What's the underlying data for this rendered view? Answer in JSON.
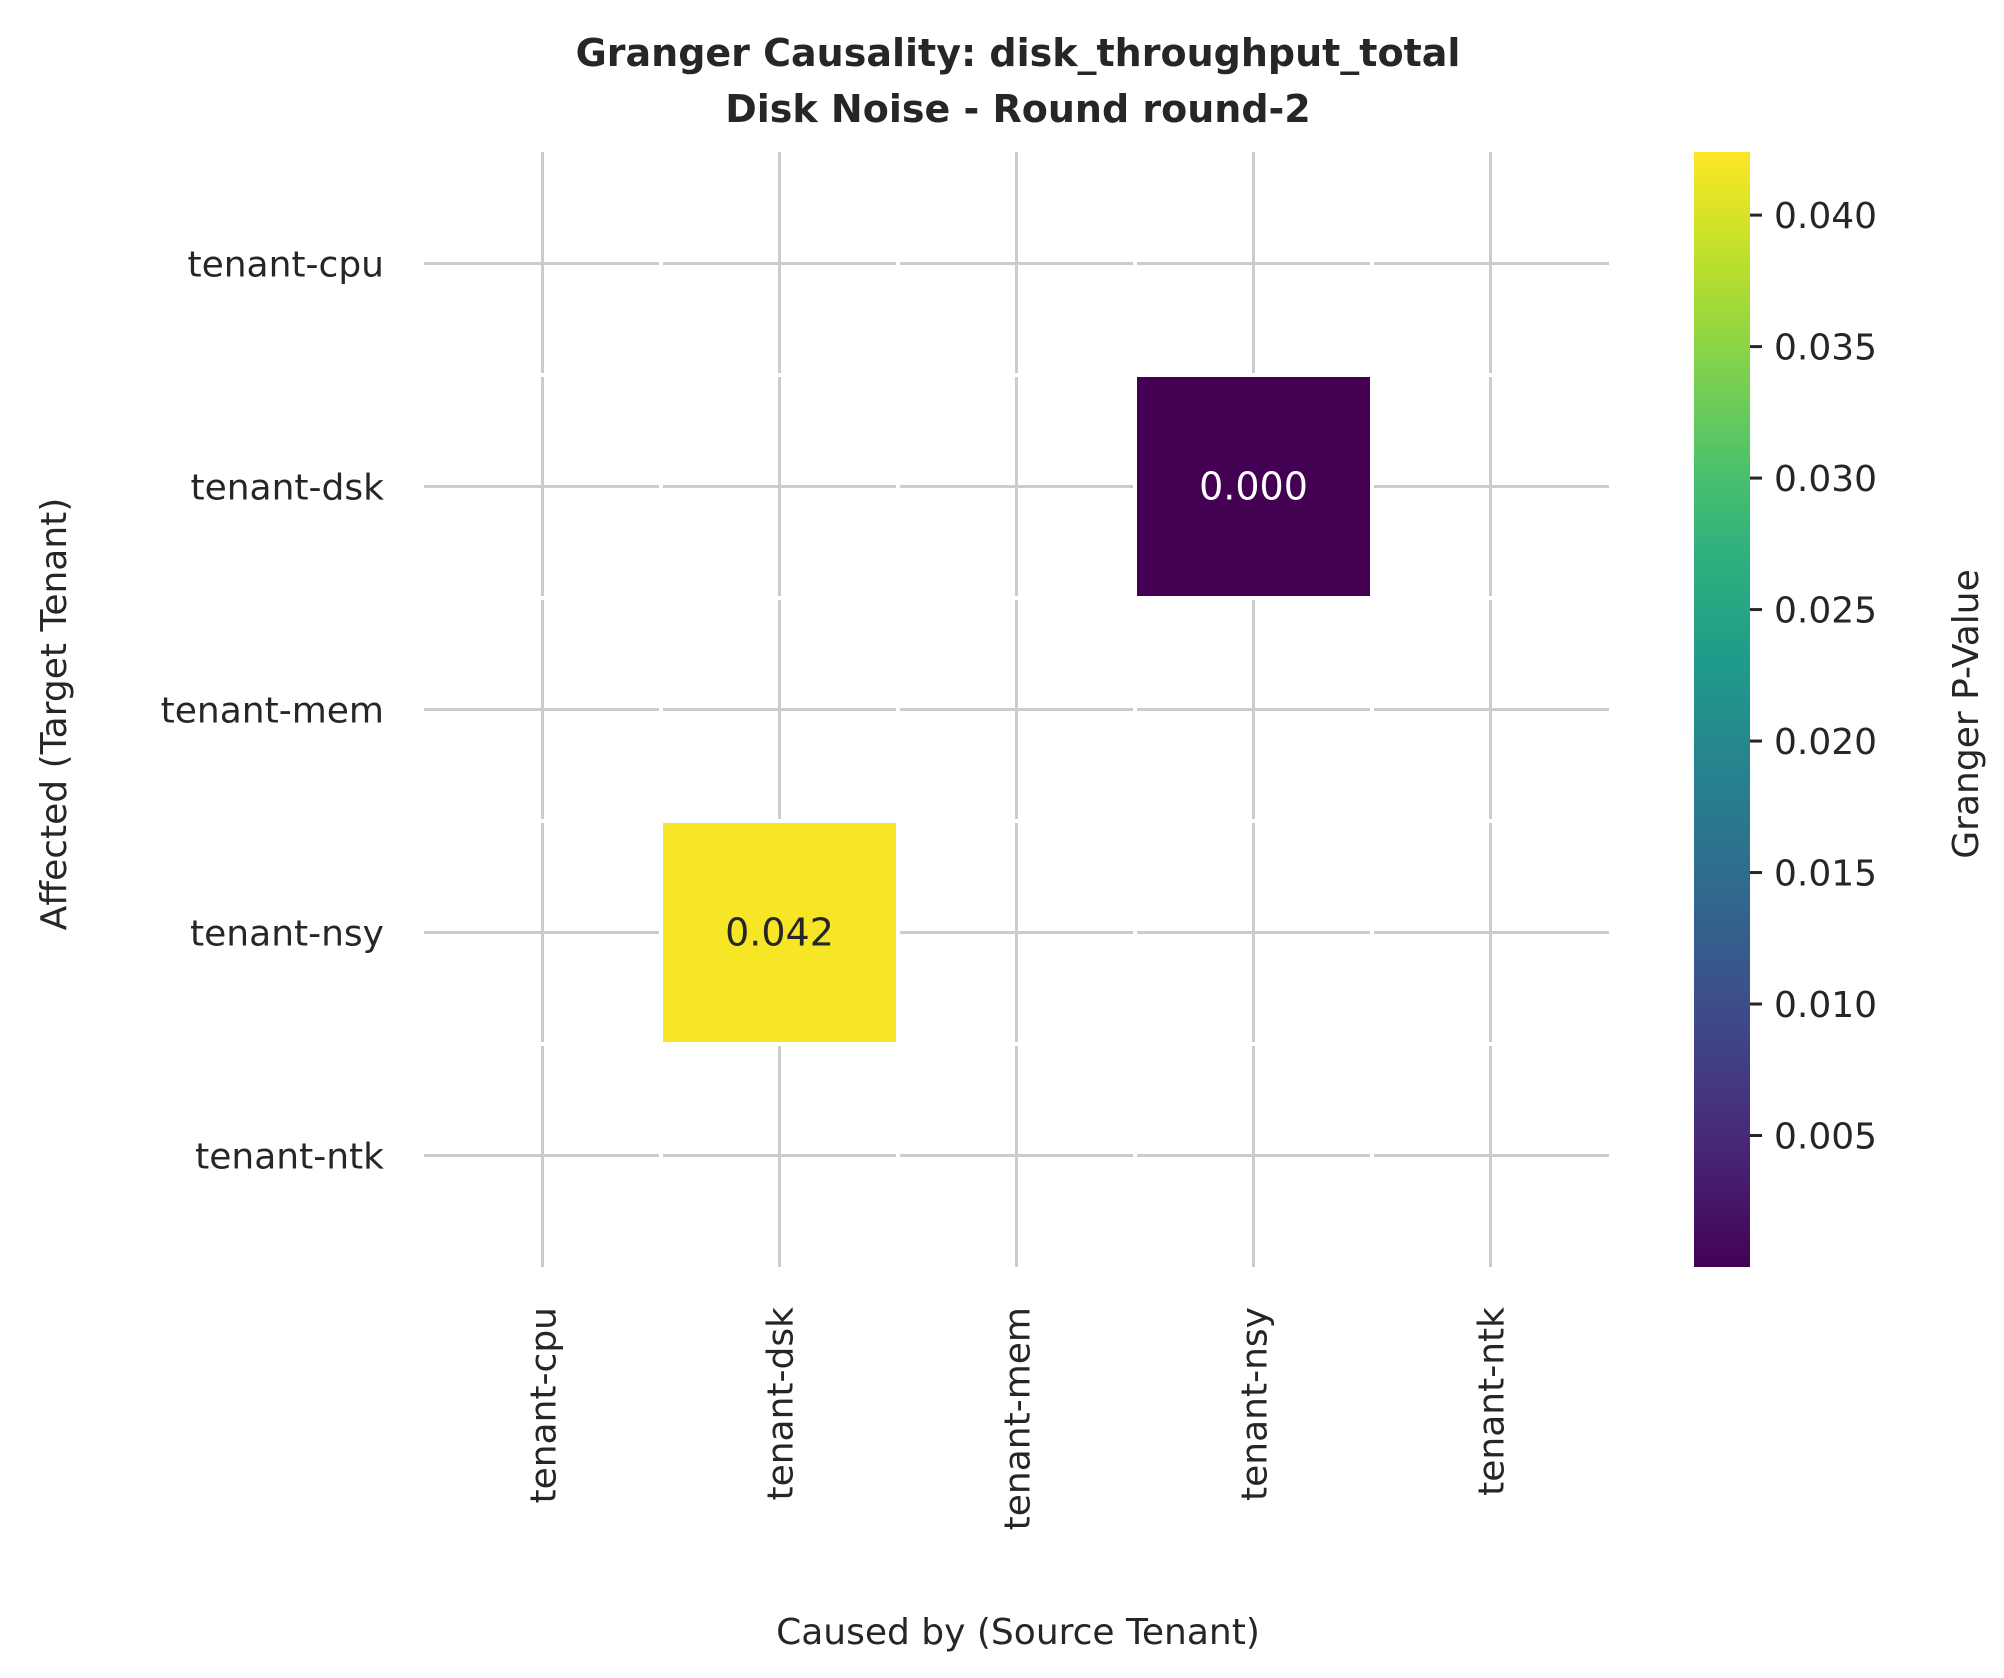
{
  "chart_data": {
    "type": "heatmap",
    "title": "Granger Causality: disk_throughput_total",
    "subtitle": "Disk Noise - Round round-2",
    "xlabel": "Caused by (Source Tenant)",
    "ylabel": "Affected (Target Tenant)",
    "x_categories": [
      "tenant-cpu",
      "tenant-dsk",
      "tenant-mem",
      "tenant-nsy",
      "tenant-ntk"
    ],
    "y_categories": [
      "tenant-cpu",
      "tenant-dsk",
      "tenant-mem",
      "tenant-nsy",
      "tenant-ntk"
    ],
    "cells": [
      {
        "x": "tenant-nsy",
        "y": "tenant-dsk",
        "value": 0.0,
        "label": "0.000"
      },
      {
        "x": "tenant-dsk",
        "y": "tenant-nsy",
        "value": 0.042,
        "label": "0.042"
      }
    ],
    "colorbar": {
      "label": "Granger P-Value",
      "colormap": "viridis",
      "range": [
        0.0,
        0.0424
      ],
      "ticks": [
        0.005,
        0.01,
        0.015,
        0.02,
        0.025,
        0.03,
        0.035,
        0.04
      ],
      "tick_labels": [
        "0.005",
        "0.010",
        "0.015",
        "0.020",
        "0.025",
        "0.030",
        "0.035",
        "0.040"
      ]
    },
    "grid": true,
    "colors": {
      "background": "#ffffff",
      "grid": "#cccccc",
      "text": "#262626"
    }
  }
}
